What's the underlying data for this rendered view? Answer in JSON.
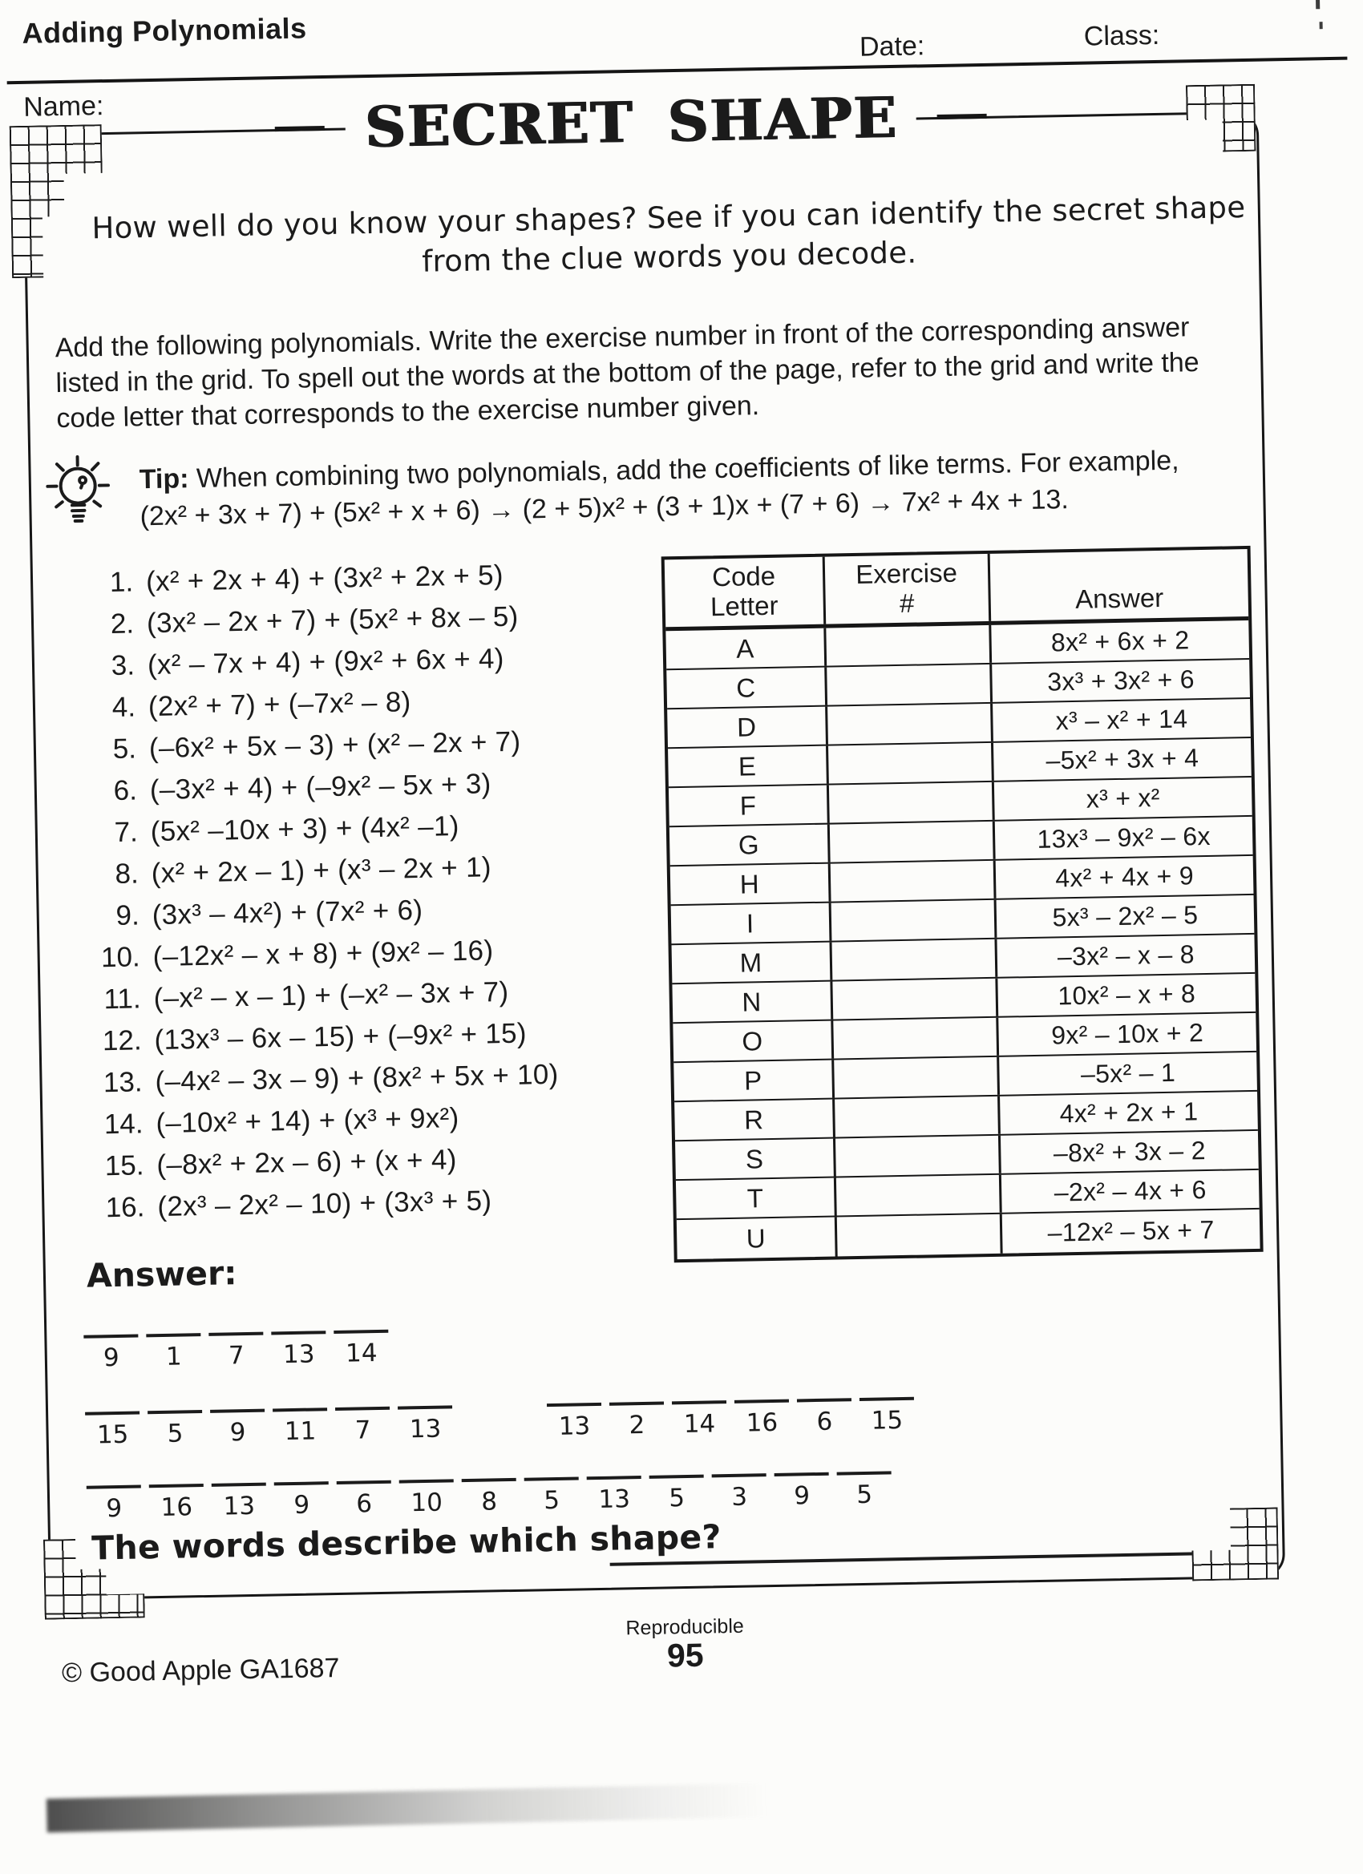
{
  "header": {
    "unit": "Adding Polynomials",
    "name_label": "Name:",
    "date_label": "Date:",
    "class_label": "Class:"
  },
  "title": "SECRET SHAPE",
  "intro": {
    "line1": "How well do you know your shapes? See if you can identify the secret shape",
    "line2": "from the clue words you decode."
  },
  "instructions": "Add the following polynomials. Write the exercise number in front of the corresponding answer listed in the grid. To spell out the words at the bottom of the page, refer to the grid and write the code letter that corresponds to the exercise number given.",
  "tip": {
    "label": "Tip:",
    "text": "When combining two polynomials, add the coefficients of like terms. For example,",
    "example": "(2x² + 3x + 7) + (5x² + x + 6) → (2 + 5)x² + (3 + 1)x + (7 + 6) → 7x² + 4x + 13."
  },
  "exercises": [
    {
      "num": "1.",
      "expr": "(x² + 2x + 4) + (3x² + 2x + 5)"
    },
    {
      "num": "2.",
      "expr": "(3x² – 2x + 7) + (5x² + 8x – 5)"
    },
    {
      "num": "3.",
      "expr": "(x² – 7x + 4) + (9x² + 6x + 4)"
    },
    {
      "num": "4.",
      "expr": "(2x² + 7) + (–7x² – 8)"
    },
    {
      "num": "5.",
      "expr": "(–6x² + 5x – 3) + (x² – 2x + 7)"
    },
    {
      "num": "6.",
      "expr": "(–3x² + 4) + (–9x² – 5x + 3)"
    },
    {
      "num": "7.",
      "expr": "(5x² –10x + 3) + (4x² –1)"
    },
    {
      "num": "8.",
      "expr": "(x² + 2x – 1) + (x³ – 2x + 1)"
    },
    {
      "num": "9.",
      "expr": "(3x³ – 4x²) + (7x² + 6)"
    },
    {
      "num": "10.",
      "expr": "(–12x² – x + 8) + (9x² – 16)"
    },
    {
      "num": "11.",
      "expr": "(–x² – x – 1) + (–x² – 3x + 7)"
    },
    {
      "num": "12.",
      "expr": "(13x³ – 6x – 15) + (–9x² + 15)"
    },
    {
      "num": "13.",
      "expr": "(–4x² – 3x – 9) + (8x² + 5x + 10)"
    },
    {
      "num": "14.",
      "expr": "(–10x² + 14) + (x³ + 9x²)"
    },
    {
      "num": "15.",
      "expr": "(–8x² + 2x – 6) + (x + 4)"
    },
    {
      "num": "16.",
      "expr": "(2x³ – 2x² – 10) + (3x³ + 5)"
    }
  ],
  "grid": {
    "col1": "Code Letter",
    "col2a": "Exercise",
    "col2b": "#",
    "col3": "Answer",
    "rows": [
      {
        "letter": "A",
        "exercise": "",
        "answer": "8x² + 6x + 2"
      },
      {
        "letter": "C",
        "exercise": "",
        "answer": "3x³ + 3x² + 6"
      },
      {
        "letter": "D",
        "exercise": "",
        "answer": "x³ – x² + 14"
      },
      {
        "letter": "E",
        "exercise": "",
        "answer": "–5x² + 3x + 4"
      },
      {
        "letter": "F",
        "exercise": "",
        "answer": "x³ + x²"
      },
      {
        "letter": "G",
        "exercise": "",
        "answer": "13x³ – 9x² – 6x"
      },
      {
        "letter": "H",
        "exercise": "",
        "answer": "4x² + 4x + 9"
      },
      {
        "letter": "I",
        "exercise": "",
        "answer": "5x³ – 2x² – 5"
      },
      {
        "letter": "M",
        "exercise": "",
        "answer": "–3x² – x – 8"
      },
      {
        "letter": "N",
        "exercise": "",
        "answer": "10x² – x + 8"
      },
      {
        "letter": "O",
        "exercise": "",
        "answer": "9x² – 10x + 2"
      },
      {
        "letter": "P",
        "exercise": "",
        "answer": "–5x² – 1"
      },
      {
        "letter": "R",
        "exercise": "",
        "answer": "4x² + 2x + 1"
      },
      {
        "letter": "S",
        "exercise": "",
        "answer": "–8x² + 3x – 2"
      },
      {
        "letter": "T",
        "exercise": "",
        "answer": "–2x² – 4x + 6"
      },
      {
        "letter": "U",
        "exercise": "",
        "answer": "–12x² – 5x + 7"
      }
    ]
  },
  "answers": {
    "label": "Answer:",
    "rows": [
      [
        [
          "9",
          "1",
          "7",
          "13",
          "14"
        ]
      ],
      [
        [
          "15",
          "5",
          "9",
          "11",
          "7",
          "13"
        ],
        [
          "13",
          "2",
          "14",
          "16",
          "6",
          "15"
        ]
      ],
      [
        [
          "9",
          "16",
          "13",
          "9",
          "6",
          "10",
          "8",
          "5",
          "13",
          "5",
          "3",
          "9",
          "5"
        ]
      ]
    ]
  },
  "question": {
    "text": "The words describe which shape?"
  },
  "footer": {
    "reproducible": "Reproducible",
    "page": "95",
    "copyright": "© Good Apple GA1687"
  }
}
